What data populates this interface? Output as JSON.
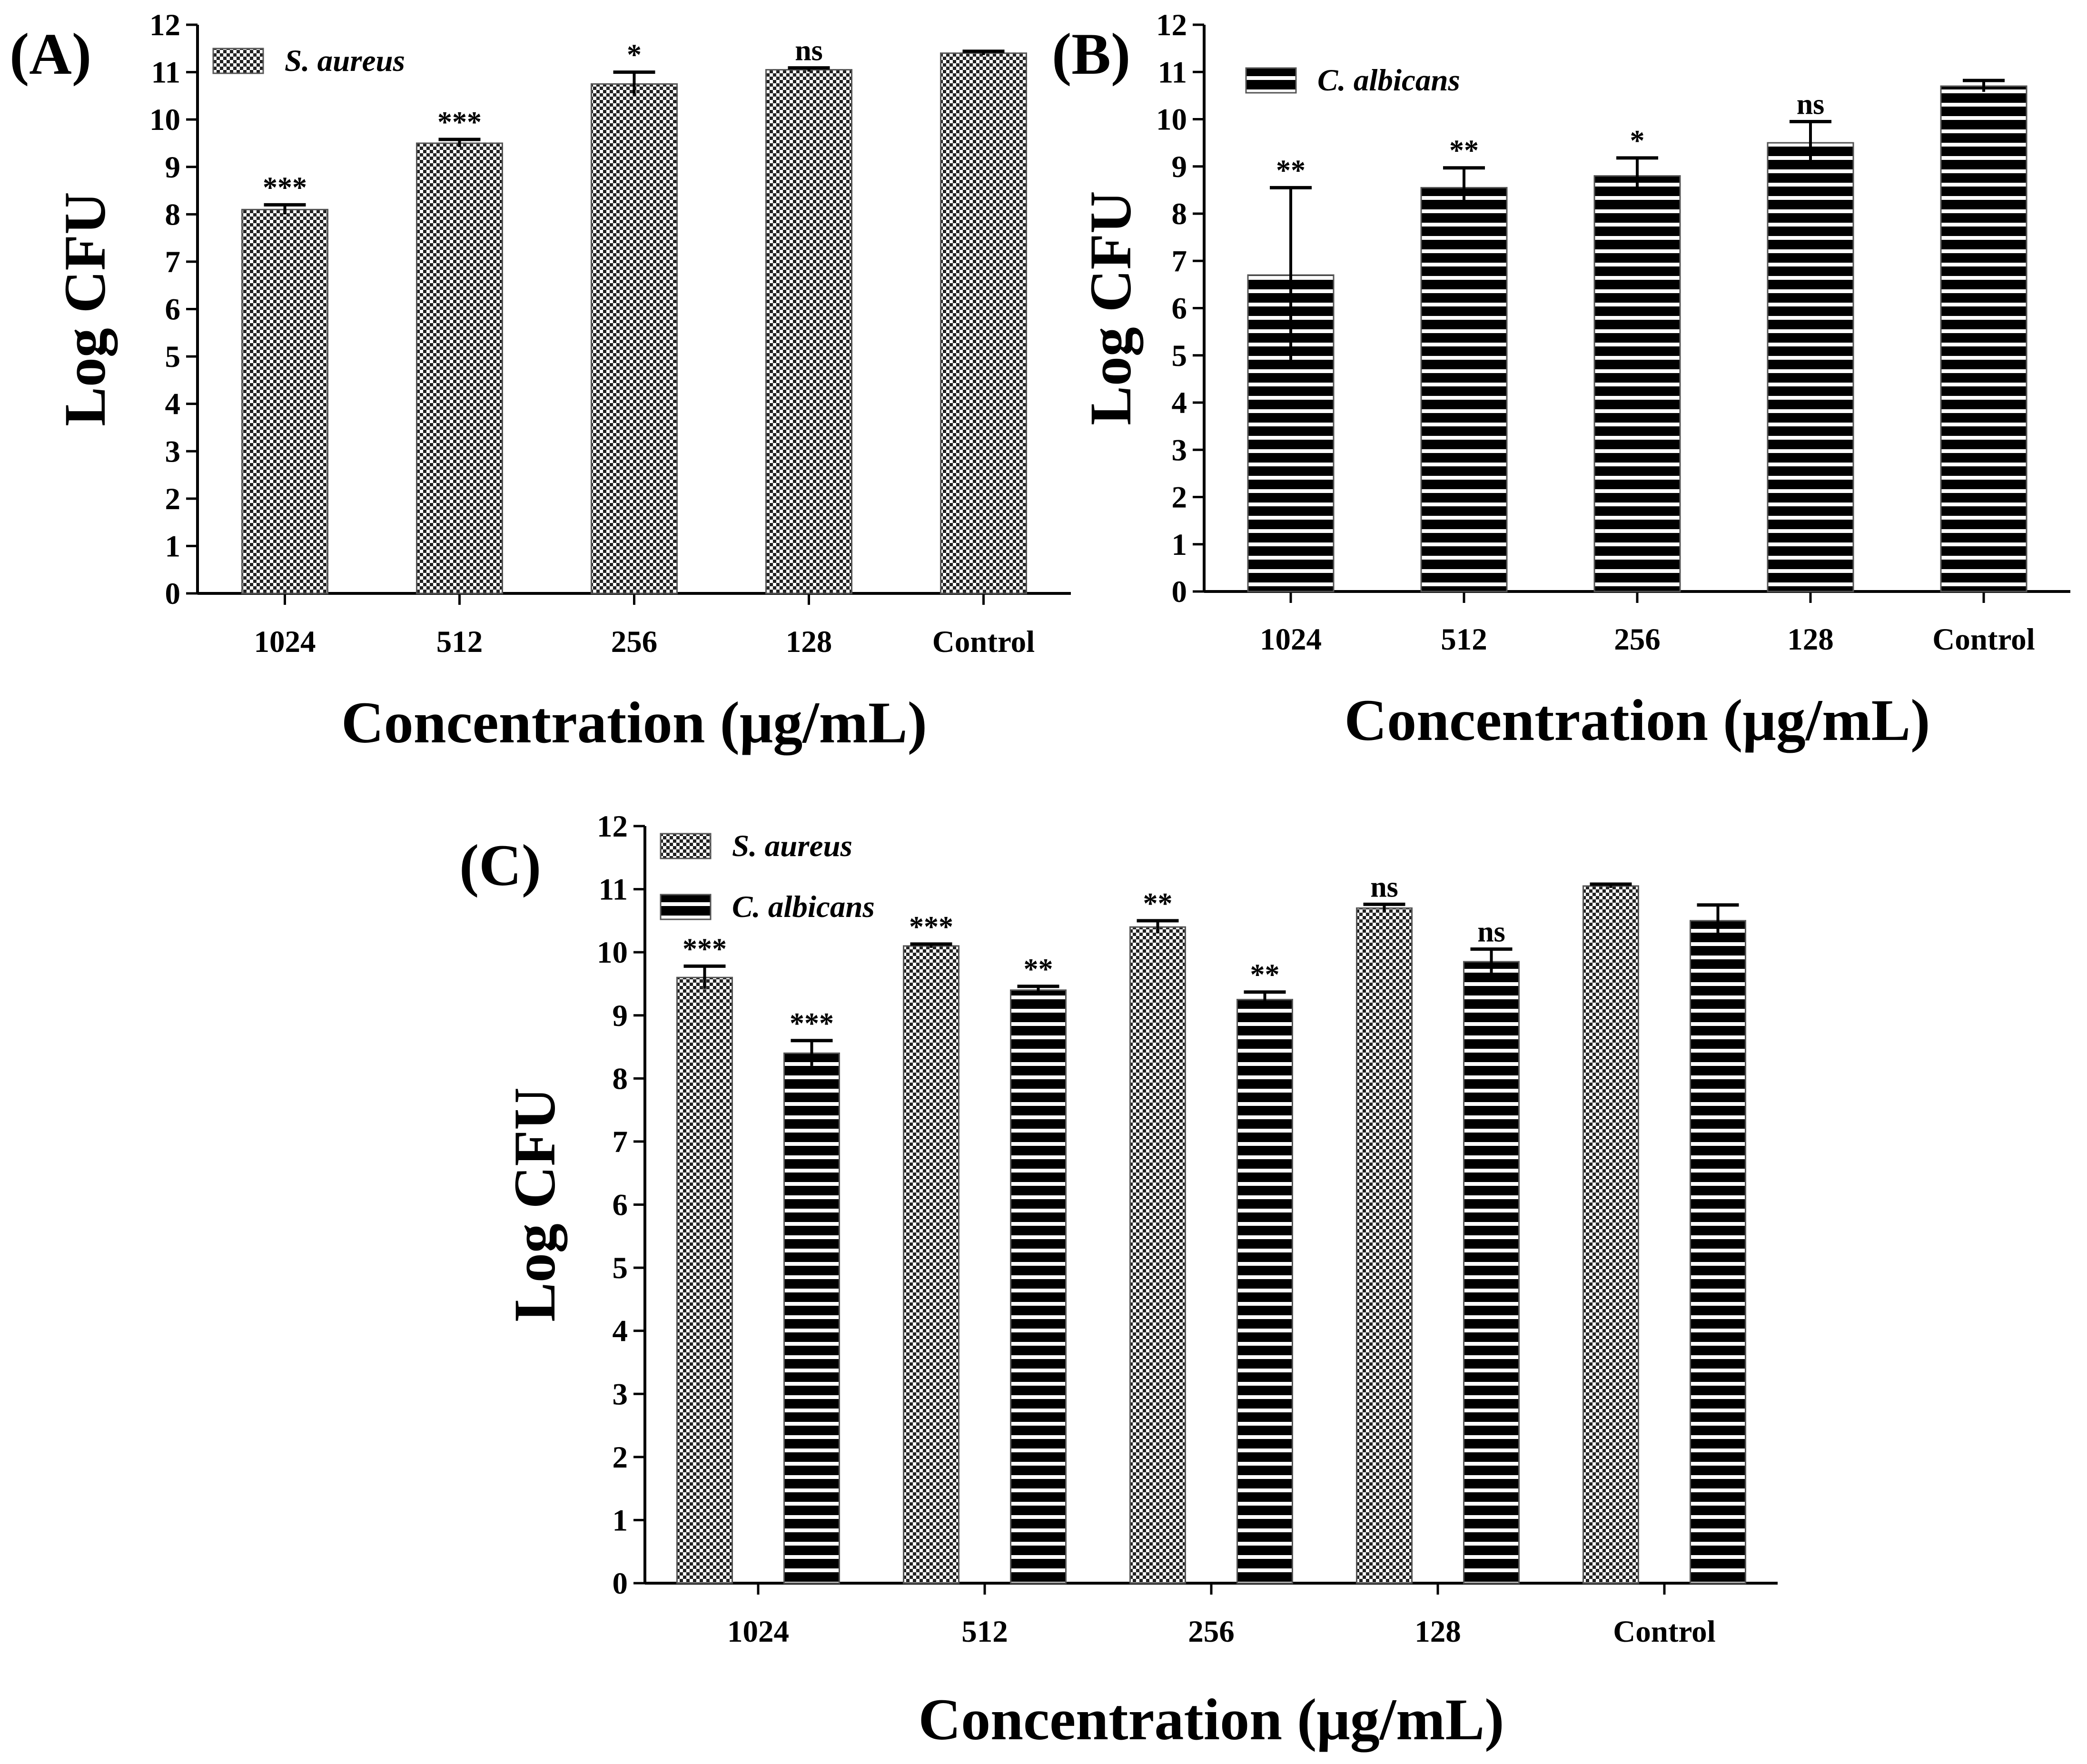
{
  "chart_data": [
    {
      "type": "bar",
      "panel_label": "(A)",
      "categories": [
        "1024",
        "512",
        "256",
        "128",
        "Control"
      ],
      "series": [
        {
          "name": "S. aureus",
          "pattern": "checker",
          "values": [
            8.1,
            9.5,
            10.75,
            11.05,
            11.4
          ],
          "errors": [
            0.1,
            0.08,
            0.25,
            0.04,
            0.04
          ],
          "significance": [
            "***",
            "***",
            "*",
            "ns",
            ""
          ]
        }
      ],
      "xlabel": "Concentration (μg/mL)",
      "ylabel": "Log CFU",
      "ylim": [
        0,
        12
      ],
      "yticks": [
        "0",
        "1",
        "2",
        "3",
        "4",
        "5",
        "6",
        "7",
        "8",
        "9",
        "10",
        "11",
        "12"
      ],
      "legend_position": "top-left"
    },
    {
      "type": "bar",
      "panel_label": "(B)",
      "categories": [
        "1024",
        "512",
        "256",
        "128",
        "Control"
      ],
      "series": [
        {
          "name": "C. albicans",
          "pattern": "stripes",
          "values": [
            6.7,
            8.55,
            8.8,
            9.5,
            10.7
          ],
          "errors": [
            1.85,
            0.42,
            0.38,
            0.45,
            0.12
          ],
          "significance": [
            "**",
            "**",
            "*",
            "ns",
            ""
          ]
        }
      ],
      "xlabel": "Concentration (μg/mL)",
      "ylabel": "Log CFU",
      "ylim": [
        0,
        12
      ],
      "yticks": [
        "0",
        "1",
        "2",
        "3",
        "4",
        "5",
        "6",
        "7",
        "8",
        "9",
        "10",
        "11",
        "12"
      ],
      "legend_position": "top-left"
    },
    {
      "type": "bar",
      "panel_label": "(C)",
      "categories": [
        "1024",
        "512",
        "256",
        "128",
        "Control"
      ],
      "series": [
        {
          "name": "S. aureus",
          "pattern": "checker",
          "values": [
            9.6,
            10.1,
            10.4,
            10.7,
            11.05
          ],
          "errors": [
            0.18,
            0.03,
            0.1,
            0.06,
            0.03
          ],
          "significance": [
            "***",
            "***",
            "**",
            "ns",
            ""
          ]
        },
        {
          "name": "C. albicans",
          "pattern": "stripes",
          "values": [
            8.4,
            9.4,
            9.25,
            9.85,
            10.5
          ],
          "errors": [
            0.2,
            0.06,
            0.12,
            0.2,
            0.25
          ],
          "significance": [
            "***",
            "**",
            "**",
            "ns",
            ""
          ]
        }
      ],
      "xlabel": "Concentration (μg/mL)",
      "ylabel": "Log CFU",
      "ylim": [
        0,
        12
      ],
      "yticks": [
        "0",
        "1",
        "2",
        "3",
        "4",
        "5",
        "6",
        "7",
        "8",
        "9",
        "10",
        "11",
        "12"
      ],
      "legend_position": "top-left"
    }
  ]
}
